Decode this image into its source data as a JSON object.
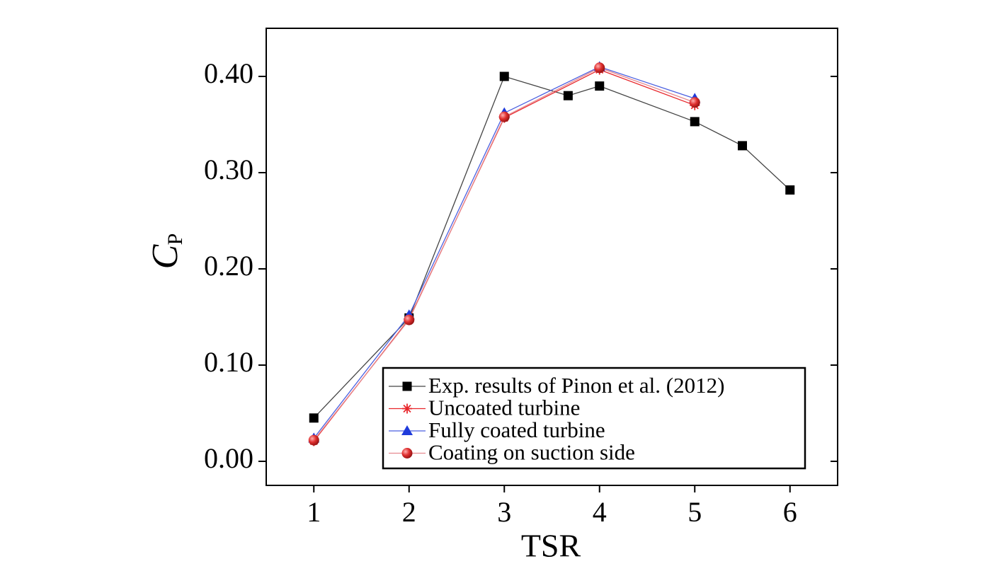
{
  "chart_data": {
    "type": "line",
    "x_label": "TSR",
    "y_label": "C",
    "y_label_subscript": "P",
    "xlim": [
      0.5,
      6.5
    ],
    "xticks": [
      1,
      2,
      3,
      4,
      5,
      6
    ],
    "ylim": [
      -0.025,
      0.45
    ],
    "yticks": [
      {
        "value": 0,
        "label": "0.00"
      },
      {
        "value": 0.1,
        "label": "0.10"
      },
      {
        "value": 0.2,
        "label": "0.20"
      },
      {
        "value": 0.3,
        "label": "0.30"
      },
      {
        "value": 0.4,
        "label": "0.40"
      }
    ],
    "legend": "lower right",
    "series": [
      {
        "name": "Exp. results of Pinon et al. (2012)",
        "color": "#000000",
        "line_color": "#444444",
        "marker": "square",
        "x": [
          1,
          2,
          3,
          3.67,
          4,
          5,
          5.5,
          6
        ],
        "values": [
          0.045,
          0.149,
          0.4,
          0.38,
          0.39,
          0.353,
          0.328,
          0.282
        ]
      },
      {
        "name": "Uncoated turbine",
        "color": "#e8262b",
        "line_color": "#e8262b",
        "marker": "star",
        "x": [
          1,
          2,
          3,
          4,
          5
        ],
        "values": [
          0.021,
          0.148,
          0.357,
          0.407,
          0.37
        ]
      },
      {
        "name": "Fully coated turbine",
        "color": "#1f3bdb",
        "line_color": "#4a5fe0",
        "marker": "triangle",
        "x": [
          1,
          2,
          3,
          4,
          5
        ],
        "values": [
          0.024,
          0.152,
          0.362,
          0.41,
          0.377
        ]
      },
      {
        "name": "Coating on suction side",
        "color": "#d9252e",
        "line_color": "#e58a90",
        "marker": "circle",
        "x": [
          1,
          2,
          3,
          4,
          5
        ],
        "values": [
          0.022,
          0.147,
          0.358,
          0.409,
          0.373
        ]
      }
    ]
  }
}
